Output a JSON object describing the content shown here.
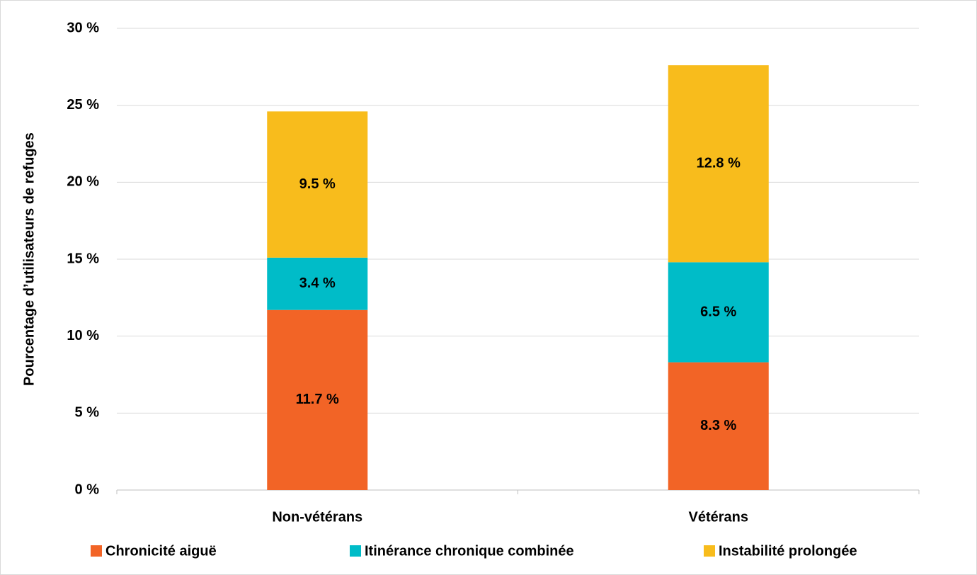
{
  "chart_data": {
    "type": "stacked_bar",
    "y_label": "Pourcentage d’utilisateurs de refuges",
    "categories": [
      "Non-vétérans",
      "Vétérans"
    ],
    "series": [
      {
        "name": "Chronicité aiguë",
        "color": "#f26426",
        "values": [
          11.7,
          8.3
        ],
        "value_labels": [
          "11.7 %",
          "8.3 %"
        ]
      },
      {
        "name": "Itinérance chronique combinée",
        "color": "#00bcc8",
        "values": [
          3.4,
          6.5
        ],
        "value_labels": [
          "3.4 %",
          "6.5 %"
        ]
      },
      {
        "name": "Instabilité prolongée",
        "color": "#f8bc1c",
        "values": [
          9.5,
          12.8
        ],
        "value_labels": [
          "9.5 %",
          "12.8 %"
        ]
      }
    ],
    "ylim": [
      0,
      30
    ],
    "yticks": [
      {
        "value": 0,
        "label": "0 %"
      },
      {
        "value": 5,
        "label": "5 %"
      },
      {
        "value": 10,
        "label": "10 %"
      },
      {
        "value": 15,
        "label": "15 %"
      },
      {
        "value": 20,
        "label": "20 %"
      },
      {
        "value": 25,
        "label": "25 %"
      },
      {
        "value": 30,
        "label": "30 %"
      }
    ],
    "grid": true,
    "legend": "bottom"
  }
}
